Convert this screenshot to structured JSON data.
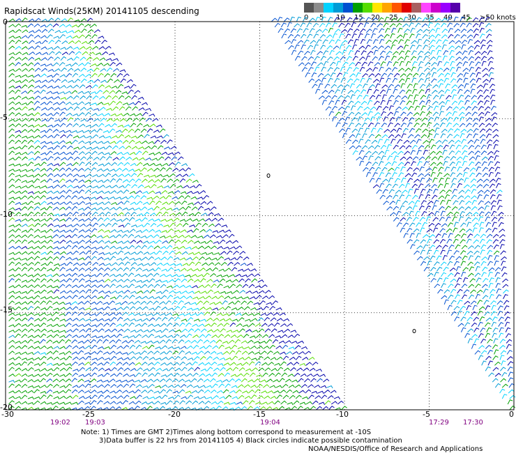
{
  "title": "Rapidscat Winds(25KM) 20141105 descending",
  "legend": {
    "colors": [
      "#555555",
      "#8c8c8c",
      "#00d2ff",
      "#009bd6",
      "#0050d0",
      "#00a000",
      "#55dd00",
      "#ffe600",
      "#ffa500",
      "#ff5500",
      "#e00000",
      "#a86060",
      "#ff44ff",
      "#cc00cc",
      "#9900ff",
      "#5500aa"
    ],
    "labels": [
      "0",
      "5",
      "10",
      "15",
      "20",
      "25",
      "30",
      "35",
      "40",
      "45",
      ">50 knots"
    ]
  },
  "axes": {
    "x_ticks": [
      "-30",
      "-25",
      "-20",
      "-15",
      "-10",
      "-5",
      "0"
    ],
    "y_ticks": [
      "0",
      "-5",
      "-10",
      "-15",
      "-20"
    ],
    "xlim": [
      -30,
      0
    ],
    "ylim": [
      -20,
      0
    ],
    "grid": "dotted"
  },
  "pass_times": [
    {
      "label": "19:02",
      "lon": -28
    },
    {
      "label": "19:03",
      "lon": -25
    },
    {
      "label": "19:04",
      "lon": -15
    },
    {
      "label": "17:29",
      "lon": -5
    },
    {
      "label": "17:30",
      "lon": -2.5
    }
  ],
  "notes": {
    "line1": "Note: 1) Times are GMT 2)Times along bottom correspond to measurement at -10S",
    "line2": "3)Data buffer is 22 hrs from 20141105 4) Black circles indicate possible contamination",
    "line3": "NOAA/NESDIS/Office of Research and Applications"
  },
  "wind_swaths": [
    {
      "name": "west",
      "top_x": [
        -30,
        -25
      ],
      "bottom_x": [
        -30,
        -10
      ],
      "band_colors": [
        "#00a000",
        "#00a000",
        "#0050d0",
        "#0050d0",
        "#009bd6",
        "#009bd6",
        "#00d2ff",
        "#55dd00",
        "#00a000",
        "#0000aa"
      ]
    },
    {
      "name": "east",
      "top_x": [
        -14.5,
        -1.5
      ],
      "bottom_x": [
        -0.5,
        0
      ],
      "band_colors": [
        "#0050d0",
        "#009bd6",
        "#00d2ff",
        "#0000aa",
        "#0050d0",
        "#00a000",
        "#009bd6",
        "#00d2ff",
        "#0050d0",
        "#0000aa"
      ]
    }
  ]
}
